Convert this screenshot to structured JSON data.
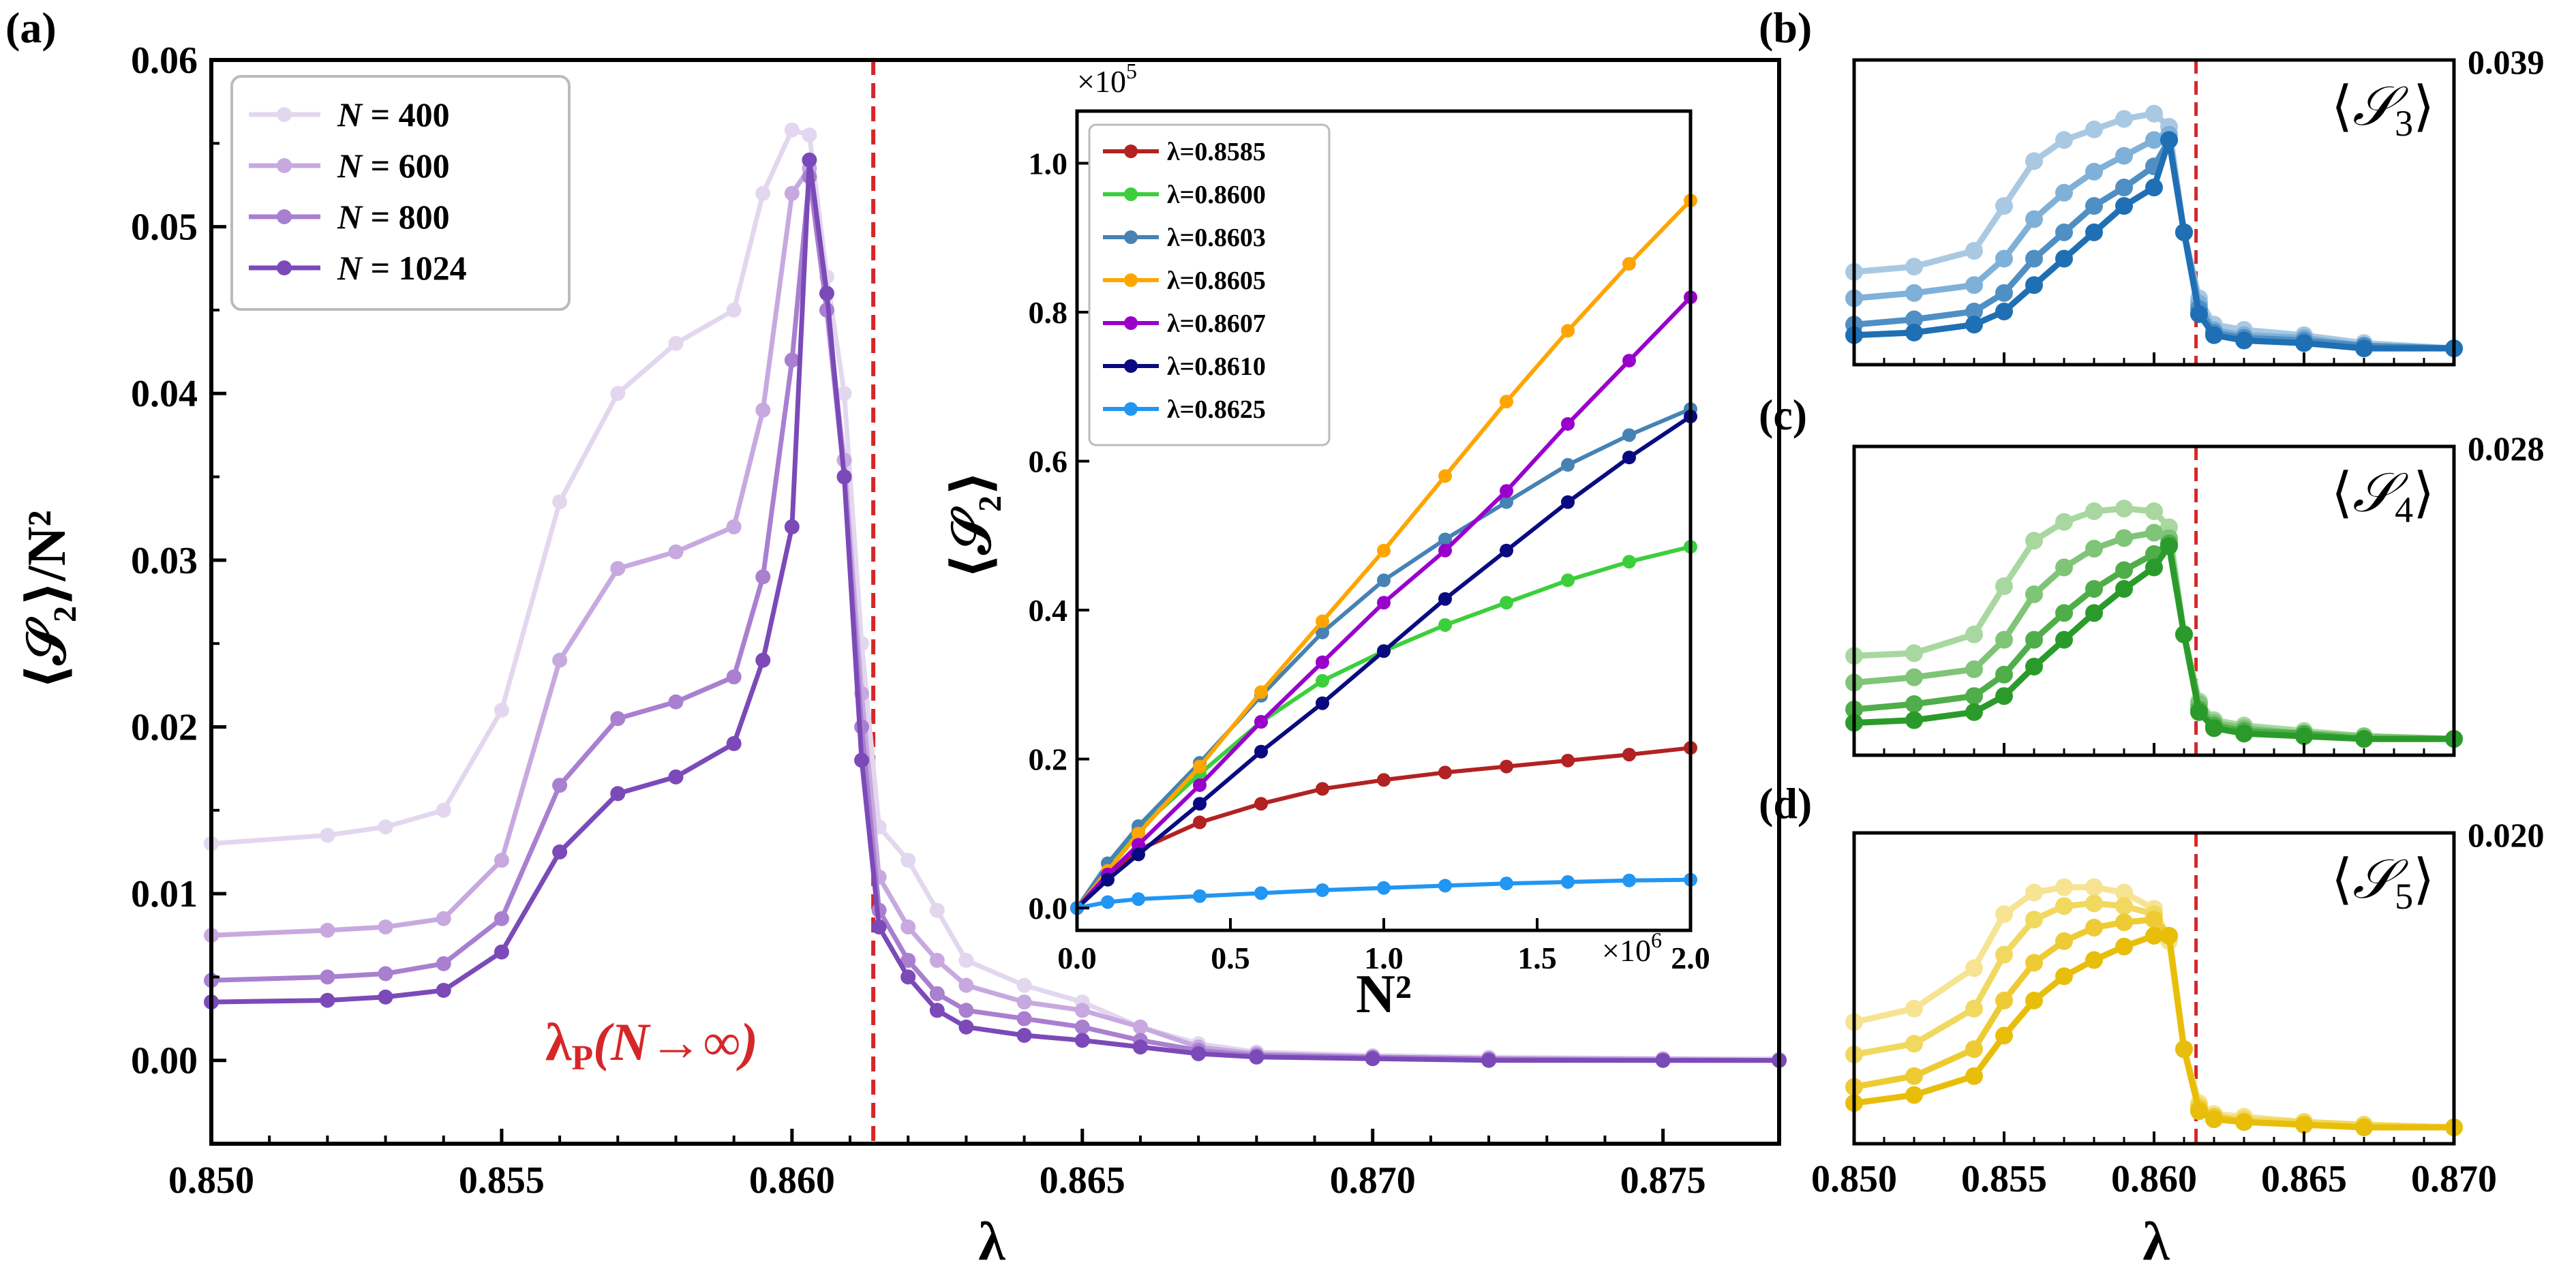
{
  "panel_labels": {
    "a": "(a)",
    "b": "(b)",
    "c": "(c)",
    "d": "(d)"
  },
  "colors": {
    "critical_line": "#d62728",
    "inset_series": [
      "#b22222",
      "#3ccf3c",
      "#4682b4",
      "#ffa500",
      "#9900cc",
      "#0a0a80",
      "#2196f3"
    ],
    "main_series": [
      "#e3d7ef",
      "#c7a9e0",
      "#a97fd0",
      "#7b4ab8"
    ],
    "blues": [
      "#a9c9e3",
      "#7fb0d8",
      "#4f8fc4",
      "#1f6fb4"
    ],
    "greens": [
      "#a8d8a0",
      "#7fc477",
      "#4fae4a",
      "#2a9b2a"
    ],
    "yellows": [
      "#f6e493",
      "#f1d85f",
      "#eecb34",
      "#e8be0a"
    ]
  },
  "chart_data": [
    {
      "id": "a",
      "type": "line",
      "title": "",
      "xlabel": "λ",
      "ylabel": "⟨𝒮₂⟩/N²",
      "xlim": [
        0.85,
        0.877
      ],
      "ylim": [
        -0.005,
        0.06
      ],
      "xticks": [
        "0.850",
        "0.855",
        "0.860",
        "0.865",
        "0.870",
        "0.875"
      ],
      "yticks": [
        "0.00",
        "0.01",
        "0.02",
        "0.03",
        "0.04",
        "0.05",
        "0.06"
      ],
      "grid": false,
      "legend_position": "top-left",
      "critical_x": 0.8614,
      "annotation": {
        "text": "λP(N→∞)",
        "main": "λ",
        "sub": "P",
        "rest": "(N→∞)"
      },
      "x": [
        0.85,
        0.852,
        0.853,
        0.854,
        0.855,
        0.856,
        0.857,
        0.858,
        0.859,
        0.8595,
        0.86,
        0.8603,
        0.8606,
        0.8609,
        0.8612,
        0.8615,
        0.862,
        0.8625,
        0.863,
        0.864,
        0.865,
        0.866,
        0.867,
        0.868,
        0.87,
        0.872,
        0.875,
        0.877
      ],
      "series": [
        {
          "name": "N = 400",
          "label": "N",
          "value": "= 400",
          "values": [
            0.013,
            0.0135,
            0.014,
            0.015,
            0.021,
            0.0335,
            0.04,
            0.043,
            0.045,
            0.052,
            0.0558,
            0.0555,
            0.047,
            0.04,
            0.025,
            0.014,
            0.012,
            0.009,
            0.006,
            0.0045,
            0.0035,
            0.002,
            0.001,
            0.0005,
            0.0003,
            0.0002,
            0.0001,
            0.0001
          ]
        },
        {
          "name": "N = 600",
          "label": "N",
          "value": "= 600",
          "values": [
            0.0075,
            0.0078,
            0.008,
            0.0085,
            0.012,
            0.024,
            0.0295,
            0.0305,
            0.032,
            0.039,
            0.052,
            0.0535,
            0.045,
            0.036,
            0.022,
            0.011,
            0.008,
            0.006,
            0.0045,
            0.0035,
            0.003,
            0.002,
            0.0008,
            0.0004,
            0.0002,
            0.0001,
            0.0001,
            0.0
          ]
        },
        {
          "name": "N = 800",
          "label": "N",
          "value": "= 800",
          "values": [
            0.0048,
            0.005,
            0.0052,
            0.0058,
            0.0085,
            0.0165,
            0.0205,
            0.0215,
            0.023,
            0.029,
            0.042,
            0.053,
            0.045,
            0.035,
            0.02,
            0.009,
            0.006,
            0.004,
            0.003,
            0.0025,
            0.002,
            0.0012,
            0.0006,
            0.0003,
            0.0002,
            0.0001,
            0.0,
            0.0
          ]
        },
        {
          "name": "N = 1024",
          "label": "N",
          "value": "= 1024",
          "values": [
            0.0035,
            0.0036,
            0.0038,
            0.0042,
            0.0065,
            0.0125,
            0.016,
            0.017,
            0.019,
            0.024,
            0.032,
            0.054,
            0.046,
            0.035,
            0.018,
            0.008,
            0.005,
            0.003,
            0.002,
            0.0015,
            0.0012,
            0.0008,
            0.0004,
            0.0002,
            0.0001,
            0.0,
            0.0,
            0.0
          ]
        }
      ]
    },
    {
      "id": "inset",
      "type": "line",
      "xlabel": "N²",
      "ylabel": "⟨𝒮₂⟩",
      "xlim": [
        0,
        2.0
      ],
      "ylim": [
        -0.03,
        1.07
      ],
      "xticks": [
        "0.0",
        "0.5",
        "1.0",
        "1.5",
        "2.0"
      ],
      "yticks": [
        "0.0",
        "0.2",
        "0.4",
        "0.6",
        "0.8",
        "1.0"
      ],
      "x_multiplier": "×10",
      "x_multiplier_exp": "6",
      "y_multiplier": "×10",
      "y_multiplier_exp": "5",
      "legend_position": "top-left",
      "x": [
        0.0,
        0.1,
        0.2,
        0.4,
        0.6,
        0.8,
        1.0,
        1.2,
        1.4,
        1.6,
        1.8,
        2.0
      ],
      "series": [
        {
          "name": "λ=0.8585",
          "values": [
            0.0,
            0.045,
            0.078,
            0.115,
            0.14,
            0.16,
            0.172,
            0.182,
            0.19,
            0.198,
            0.206,
            0.215
          ]
        },
        {
          "name": "λ=0.8600",
          "values": [
            0.0,
            0.06,
            0.105,
            0.18,
            0.25,
            0.305,
            0.345,
            0.38,
            0.41,
            0.44,
            0.465,
            0.485
          ]
        },
        {
          "name": "λ=0.8603",
          "values": [
            0.0,
            0.06,
            0.11,
            0.195,
            0.285,
            0.37,
            0.44,
            0.495,
            0.545,
            0.595,
            0.635,
            0.67
          ]
        },
        {
          "name": "λ=0.8605",
          "values": [
            0.0,
            0.05,
            0.1,
            0.19,
            0.29,
            0.385,
            0.48,
            0.58,
            0.68,
            0.775,
            0.865,
            0.95
          ]
        },
        {
          "name": "λ=0.8607",
          "values": [
            0.0,
            0.045,
            0.085,
            0.165,
            0.25,
            0.33,
            0.41,
            0.48,
            0.56,
            0.65,
            0.735,
            0.82
          ]
        },
        {
          "name": "λ=0.8610",
          "values": [
            0.0,
            0.038,
            0.072,
            0.14,
            0.21,
            0.275,
            0.345,
            0.415,
            0.48,
            0.545,
            0.605,
            0.66
          ]
        },
        {
          "name": "λ=0.8625",
          "values": [
            0.0,
            0.008,
            0.012,
            0.016,
            0.02,
            0.024,
            0.027,
            0.03,
            0.033,
            0.035,
            0.037,
            0.038
          ]
        }
      ]
    },
    {
      "id": "b",
      "type": "line",
      "title": "⟨𝒮₃⟩",
      "title_main": "𝒮",
      "title_sub": "3",
      "ymax_label": "0.039",
      "xlim": [
        0.85,
        0.87
      ],
      "ylim": [
        0,
        1.0
      ],
      "critical_x": 0.8614,
      "x": [
        0.85,
        0.852,
        0.854,
        0.855,
        0.856,
        0.857,
        0.858,
        0.859,
        0.86,
        0.8605,
        0.861,
        0.8615,
        0.862,
        0.863,
        0.865,
        0.867,
        0.87
      ],
      "series": [
        {
          "name": "N = 400",
          "values": [
            0.3,
            0.32,
            0.38,
            0.55,
            0.72,
            0.8,
            0.84,
            0.88,
            0.9,
            0.85,
            0.45,
            0.2,
            0.1,
            0.08,
            0.06,
            0.03,
            0.01
          ]
        },
        {
          "name": "N = 600",
          "values": [
            0.2,
            0.22,
            0.25,
            0.35,
            0.5,
            0.6,
            0.68,
            0.74,
            0.8,
            0.82,
            0.45,
            0.18,
            0.08,
            0.06,
            0.05,
            0.02,
            0.01
          ]
        },
        {
          "name": "N = 800",
          "values": [
            0.1,
            0.12,
            0.15,
            0.22,
            0.35,
            0.45,
            0.55,
            0.62,
            0.7,
            0.8,
            0.45,
            0.16,
            0.07,
            0.05,
            0.04,
            0.02,
            0.01
          ]
        },
        {
          "name": "N = 1024",
          "values": [
            0.06,
            0.07,
            0.1,
            0.15,
            0.25,
            0.35,
            0.45,
            0.55,
            0.62,
            0.8,
            0.45,
            0.14,
            0.06,
            0.04,
            0.03,
            0.01,
            0.01
          ]
        }
      ]
    },
    {
      "id": "c",
      "type": "line",
      "title": "⟨𝒮₄⟩",
      "title_main": "𝒮",
      "title_sub": "4",
      "ymax_label": "0.028",
      "xlim": [
        0.85,
        0.87
      ],
      "ylim": [
        0,
        1.0
      ],
      "critical_x": 0.8614,
      "x": [
        0.85,
        0.852,
        0.854,
        0.855,
        0.856,
        0.857,
        0.858,
        0.859,
        0.86,
        0.8605,
        0.861,
        0.8615,
        0.862,
        0.863,
        0.865,
        0.867,
        0.87
      ],
      "series": [
        {
          "name": "N = 400",
          "values": [
            0.32,
            0.33,
            0.4,
            0.58,
            0.75,
            0.82,
            0.86,
            0.87,
            0.86,
            0.8,
            0.4,
            0.15,
            0.08,
            0.06,
            0.04,
            0.02,
            0.01
          ]
        },
        {
          "name": "N = 600",
          "values": [
            0.22,
            0.24,
            0.27,
            0.38,
            0.55,
            0.65,
            0.72,
            0.76,
            0.78,
            0.76,
            0.4,
            0.14,
            0.07,
            0.05,
            0.03,
            0.02,
            0.01
          ]
        },
        {
          "name": "N = 800",
          "values": [
            0.12,
            0.14,
            0.17,
            0.25,
            0.38,
            0.48,
            0.57,
            0.64,
            0.7,
            0.74,
            0.4,
            0.12,
            0.06,
            0.04,
            0.03,
            0.01,
            0.01
          ]
        },
        {
          "name": "N = 1024",
          "values": [
            0.07,
            0.08,
            0.11,
            0.17,
            0.28,
            0.38,
            0.48,
            0.57,
            0.65,
            0.73,
            0.4,
            0.11,
            0.05,
            0.03,
            0.02,
            0.01,
            0.01
          ]
        }
      ]
    },
    {
      "id": "d",
      "type": "line",
      "title": "⟨𝒮₅⟩",
      "title_main": "𝒮",
      "title_sub": "5",
      "ymax_label": "0.020",
      "xlim": [
        0.85,
        0.87
      ],
      "ylim": [
        0,
        1.0
      ],
      "critical_x": 0.8614,
      "xticks": [
        "0.850",
        "0.855",
        "0.860",
        "0.865",
        "0.870"
      ],
      "xlabel": "λ",
      "x": [
        0.85,
        0.852,
        0.854,
        0.855,
        0.856,
        0.857,
        0.858,
        0.859,
        0.86,
        0.8605,
        0.861,
        0.8615,
        0.862,
        0.863,
        0.865,
        0.867,
        0.87
      ],
      "series": [
        {
          "name": "N = 400",
          "values": [
            0.4,
            0.45,
            0.6,
            0.8,
            0.88,
            0.9,
            0.9,
            0.88,
            0.82,
            0.7,
            0.3,
            0.1,
            0.06,
            0.05,
            0.03,
            0.02,
            0.01
          ]
        },
        {
          "name": "N = 600",
          "values": [
            0.28,
            0.32,
            0.45,
            0.65,
            0.78,
            0.83,
            0.84,
            0.83,
            0.8,
            0.72,
            0.3,
            0.09,
            0.05,
            0.04,
            0.03,
            0.02,
            0.01
          ]
        },
        {
          "name": "N = 800",
          "values": [
            0.16,
            0.2,
            0.3,
            0.48,
            0.62,
            0.7,
            0.75,
            0.77,
            0.78,
            0.72,
            0.3,
            0.08,
            0.05,
            0.03,
            0.02,
            0.01,
            0.01
          ]
        },
        {
          "name": "N = 1024",
          "values": [
            0.1,
            0.13,
            0.2,
            0.35,
            0.48,
            0.57,
            0.63,
            0.68,
            0.72,
            0.72,
            0.3,
            0.07,
            0.04,
            0.03,
            0.02,
            0.01,
            0.01
          ]
        }
      ]
    }
  ]
}
